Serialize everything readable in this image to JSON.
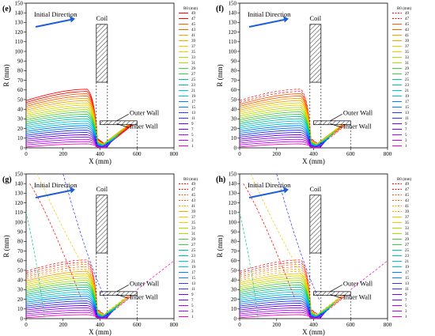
{
  "chart_data": [
    {
      "type": "line",
      "panel_label": "(e)",
      "xlabel": "X (mm)",
      "ylabel": "R (mm)",
      "xlim": [
        0,
        800
      ],
      "ylim": [
        0,
        150
      ],
      "xticks": [
        0,
        200,
        400,
        600,
        800
      ],
      "yticks": [
        0,
        10,
        20,
        30,
        40,
        50,
        60,
        70,
        80,
        90,
        100,
        110,
        120,
        130,
        140,
        150
      ],
      "legend_title": "R0 (mm)",
      "legend_values": [
        49,
        47,
        45,
        43,
        41,
        39,
        37,
        35,
        33,
        31,
        29,
        27,
        25,
        23,
        21,
        19,
        17,
        15,
        13,
        11,
        9,
        7,
        5,
        3,
        1
      ],
      "dashed_start_index": 25,
      "annotations": [
        "Initial Direction",
        "Coil",
        "Outer Wall",
        "Inner Wall"
      ],
      "coil": {
        "x": [
          380,
          440
        ],
        "r": [
          68,
          128
        ]
      },
      "outer_wall_r": 28,
      "inner_wall_r": 24,
      "wall_x": [
        400,
        600
      ],
      "series": [
        {
          "start_r": 49,
          "peak_r": 63,
          "peak_x": 330
        },
        {
          "start_r": 1,
          "peak_r": 3,
          "peak_x": 330
        }
      ]
    },
    {
      "type": "line",
      "panel_label": "(f)",
      "xlabel": "X (mm)",
      "ylabel": "R (mm)",
      "xlim": [
        0,
        800
      ],
      "ylim": [
        0,
        150
      ],
      "xticks": [
        0,
        200,
        400,
        600,
        800
      ],
      "yticks": [
        0,
        10,
        20,
        30,
        40,
        50,
        60,
        70,
        80,
        90,
        100,
        110,
        120,
        130,
        140,
        150
      ],
      "legend_title": "R0 (mm)",
      "legend_values": [
        49,
        47,
        45,
        43,
        41,
        39,
        37,
        35,
        33,
        31,
        29,
        27,
        25,
        23,
        21,
        19,
        17,
        15,
        13,
        11,
        9,
        7,
        5,
        3,
        1
      ],
      "dashed_start_index": 2,
      "annotations": [
        "Initial Direction",
        "Coil",
        "Outer Wall",
        "Inner Wall"
      ],
      "coil": {
        "x": [
          380,
          440
        ],
        "r": [
          68,
          128
        ]
      },
      "outer_wall_r": 28,
      "inner_wall_r": 24,
      "wall_x": [
        400,
        600
      ]
    },
    {
      "type": "line",
      "panel_label": "(g)",
      "xlabel": "X (mm)",
      "ylabel": "R (mm)",
      "xlim": [
        0,
        800
      ],
      "ylim": [
        0,
        150
      ],
      "xticks": [
        0,
        200,
        400,
        600,
        800
      ],
      "yticks": [
        0,
        10,
        20,
        30,
        40,
        50,
        60,
        70,
        80,
        90,
        100,
        110,
        120,
        130,
        140,
        150
      ],
      "legend_title": "R0 (mm)",
      "legend_values": [
        49,
        47,
        45,
        43,
        41,
        39,
        37,
        35,
        33,
        31,
        29,
        27,
        25,
        23,
        21,
        19,
        17,
        15,
        13,
        11,
        9,
        7,
        5,
        3,
        1
      ],
      "dashed_start_index": 5,
      "annotations": [
        "Initial Direction",
        "Coil",
        "Outer Wall",
        "Inner Wall"
      ],
      "coil": {
        "x": [
          380,
          440
        ],
        "r": [
          68,
          128
        ]
      },
      "outer_wall_r": 28,
      "inner_wall_r": 24,
      "wall_x": [
        400,
        600
      ]
    },
    {
      "type": "line",
      "panel_label": "(h)",
      "xlabel": "X (mm)",
      "ylabel": "R (mm)",
      "xlim": [
        0,
        800
      ],
      "ylim": [
        0,
        150
      ],
      "xticks": [
        0,
        200,
        400,
        600,
        800
      ],
      "yticks": [
        0,
        10,
        20,
        30,
        40,
        50,
        60,
        70,
        80,
        90,
        100,
        110,
        120,
        130,
        140,
        150
      ],
      "legend_title": "R0 (mm)",
      "legend_values": [
        49,
        47,
        45,
        43,
        41,
        39,
        37,
        35,
        33,
        31,
        29,
        27,
        25,
        23,
        21,
        19,
        17,
        15,
        13,
        11,
        9,
        7,
        5,
        3,
        1
      ],
      "dashed_start_index": 6,
      "annotations": [
        "Initial Direction",
        "Coil",
        "Outer Wall",
        "Inner Wall"
      ],
      "coil": {
        "x": [
          380,
          440
        ],
        "r": [
          68,
          128
        ]
      },
      "outer_wall_r": 28,
      "inner_wall_r": 24,
      "wall_x": [
        400,
        600
      ]
    }
  ],
  "colors": {
    "arrow": "#1f5fd6",
    "palette": [
      "#ff0000",
      "#ff5a00",
      "#ffa000",
      "#e8d000",
      "#a8e000",
      "#40d040",
      "#00c890",
      "#00c0e0",
      "#0080ff",
      "#3030ff",
      "#7a00ff",
      "#c000ff",
      "#ff00c0"
    ]
  }
}
